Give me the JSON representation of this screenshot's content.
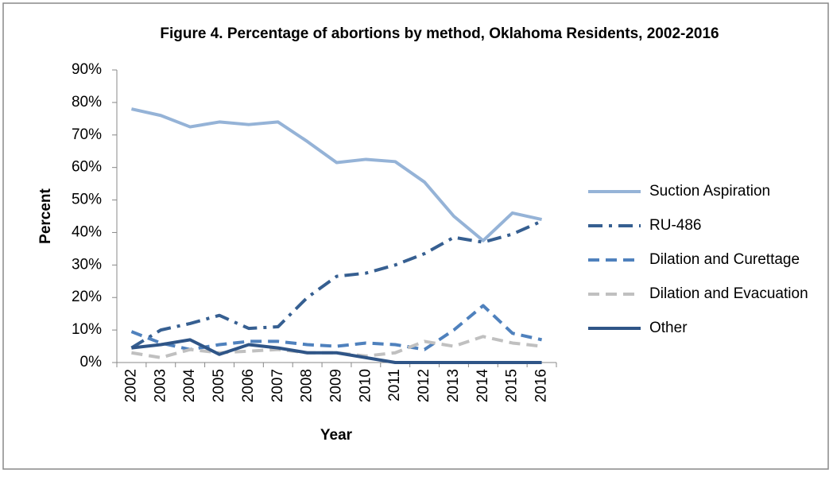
{
  "chart_data": {
    "type": "line",
    "title": "Figure 4. Percentage of abortions by method, Oklahoma Residents, 2002-2016",
    "x_label": "Year",
    "y_label": "Percent",
    "categories": [
      "2002",
      "2003",
      "2004",
      "2005",
      "2006",
      "2007",
      "2008",
      "2009",
      "2010",
      "2011",
      "2012",
      "2013",
      "2014",
      "2015",
      "2016"
    ],
    "ylim": [
      0,
      90
    ],
    "yticks": [
      {
        "value": 0,
        "label": "0%"
      },
      {
        "value": 10,
        "label": "10%"
      },
      {
        "value": 20,
        "label": "20%"
      },
      {
        "value": 30,
        "label": "30%"
      },
      {
        "value": 40,
        "label": "40%"
      },
      {
        "value": 50,
        "label": "50%"
      },
      {
        "value": 60,
        "label": "60%"
      },
      {
        "value": 70,
        "label": "70%"
      },
      {
        "value": 80,
        "label": "80%"
      },
      {
        "value": 90,
        "label": "90%"
      }
    ],
    "legend": "right",
    "series": [
      {
        "name": "Suction Aspiration",
        "color": "#95b3d7",
        "line_style": "solid",
        "values": [
          78,
          76,
          72.5,
          74,
          73.2,
          74,
          68,
          61.5,
          62.5,
          61.8,
          55.5,
          45,
          37.5,
          46,
          44
        ]
      },
      {
        "name": "RU-486",
        "color": "#365f91",
        "line_style": "dashdot",
        "values": [
          4.5,
          10,
          12,
          14.5,
          10.5,
          11,
          20,
          26.5,
          27.5,
          30,
          33.5,
          38.5,
          37,
          39.5,
          43.5
        ]
      },
      {
        "name": "Dilation and Curettage",
        "color": "#4f81bd",
        "line_style": "dash",
        "values": [
          9.5,
          6,
          4,
          5.5,
          6.5,
          6.5,
          5.5,
          5,
          6,
          5.5,
          4,
          10,
          17.5,
          9,
          7
        ]
      },
      {
        "name": "Dilation and Evacuation",
        "color": "#c0c0c0",
        "line_style": "dash",
        "values": [
          3,
          1.5,
          4,
          3,
          3.5,
          4,
          3,
          3,
          2,
          3,
          6.5,
          5,
          8,
          6,
          5
        ]
      },
      {
        "name": "Other",
        "color": "#2f5587",
        "line_style": "solid",
        "values": [
          4.5,
          5.5,
          7,
          2.5,
          5.5,
          4.5,
          3,
          3,
          1.5,
          0,
          0,
          0,
          0,
          0,
          0
        ]
      }
    ]
  }
}
